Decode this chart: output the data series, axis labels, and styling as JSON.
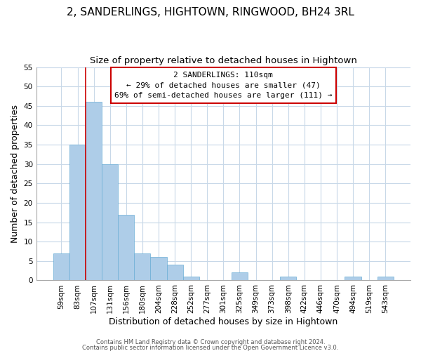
{
  "title": "2, SANDERLINGS, HIGHTOWN, RINGWOOD, BH24 3RL",
  "subtitle": "Size of property relative to detached houses in Hightown",
  "xlabel": "Distribution of detached houses by size in Hightown",
  "ylabel": "Number of detached properties",
  "bar_labels": [
    "59sqm",
    "83sqm",
    "107sqm",
    "131sqm",
    "156sqm",
    "180sqm",
    "204sqm",
    "228sqm",
    "252sqm",
    "277sqm",
    "301sqm",
    "325sqm",
    "349sqm",
    "373sqm",
    "398sqm",
    "422sqm",
    "446sqm",
    "470sqm",
    "494sqm",
    "519sqm",
    "543sqm"
  ],
  "bar_values": [
    7,
    35,
    46,
    30,
    17,
    7,
    6,
    4,
    1,
    0,
    0,
    2,
    0,
    0,
    1,
    0,
    0,
    0,
    1,
    0,
    1
  ],
  "bar_color": "#aecde8",
  "bar_edge_color": "#6aaed6",
  "vline_x": 1.5,
  "vline_color": "#cc0000",
  "annotation_title": "2 SANDERLINGS: 110sqm",
  "annotation_line1": "← 29% of detached houses are smaller (47)",
  "annotation_line2": "69% of semi-detached houses are larger (111) →",
  "ylim": [
    0,
    55
  ],
  "yticks": [
    0,
    5,
    10,
    15,
    20,
    25,
    30,
    35,
    40,
    45,
    50,
    55
  ],
  "footer1": "Contains HM Land Registry data © Crown copyright and database right 2024.",
  "footer2": "Contains public sector information licensed under the Open Government Licence v3.0.",
  "title_fontsize": 11,
  "subtitle_fontsize": 9.5,
  "xlabel_fontsize": 9,
  "ylabel_fontsize": 9,
  "tick_fontsize": 7.5,
  "annotation_fontsize": 8,
  "annotation_box_color": "#ffffff",
  "annotation_box_edge": "#cc0000",
  "grid_color": "#c8d8e8",
  "footer_fontsize": 6,
  "footer_color": "#555555"
}
